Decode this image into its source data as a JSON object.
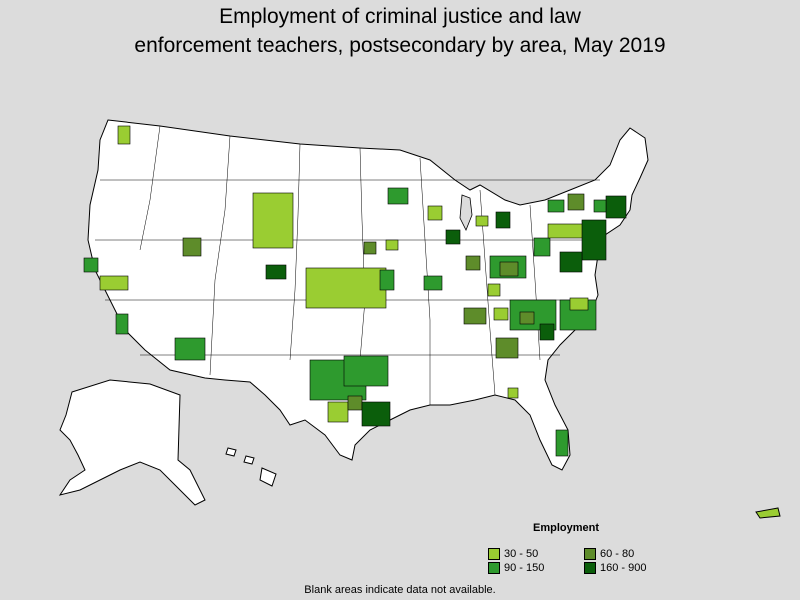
{
  "title_line1": "Employment of criminal justice and law",
  "title_line2": "enforcement teachers, postsecondary by area, May 2019",
  "legend": {
    "title": "Employment",
    "items": [
      {
        "label": "30 - 50",
        "color": "#9acd32"
      },
      {
        "label": "60 - 80",
        "color": "#5e8c2a"
      },
      {
        "label": "90 - 150",
        "color": "#2e9a2e"
      },
      {
        "label": "160 - 900",
        "color": "#0b5e0b"
      }
    ]
  },
  "note": "Blank areas indicate data not available.",
  "colors": {
    "background": "#dcdcdc",
    "land": "#ffffff",
    "border": "#000000"
  }
}
